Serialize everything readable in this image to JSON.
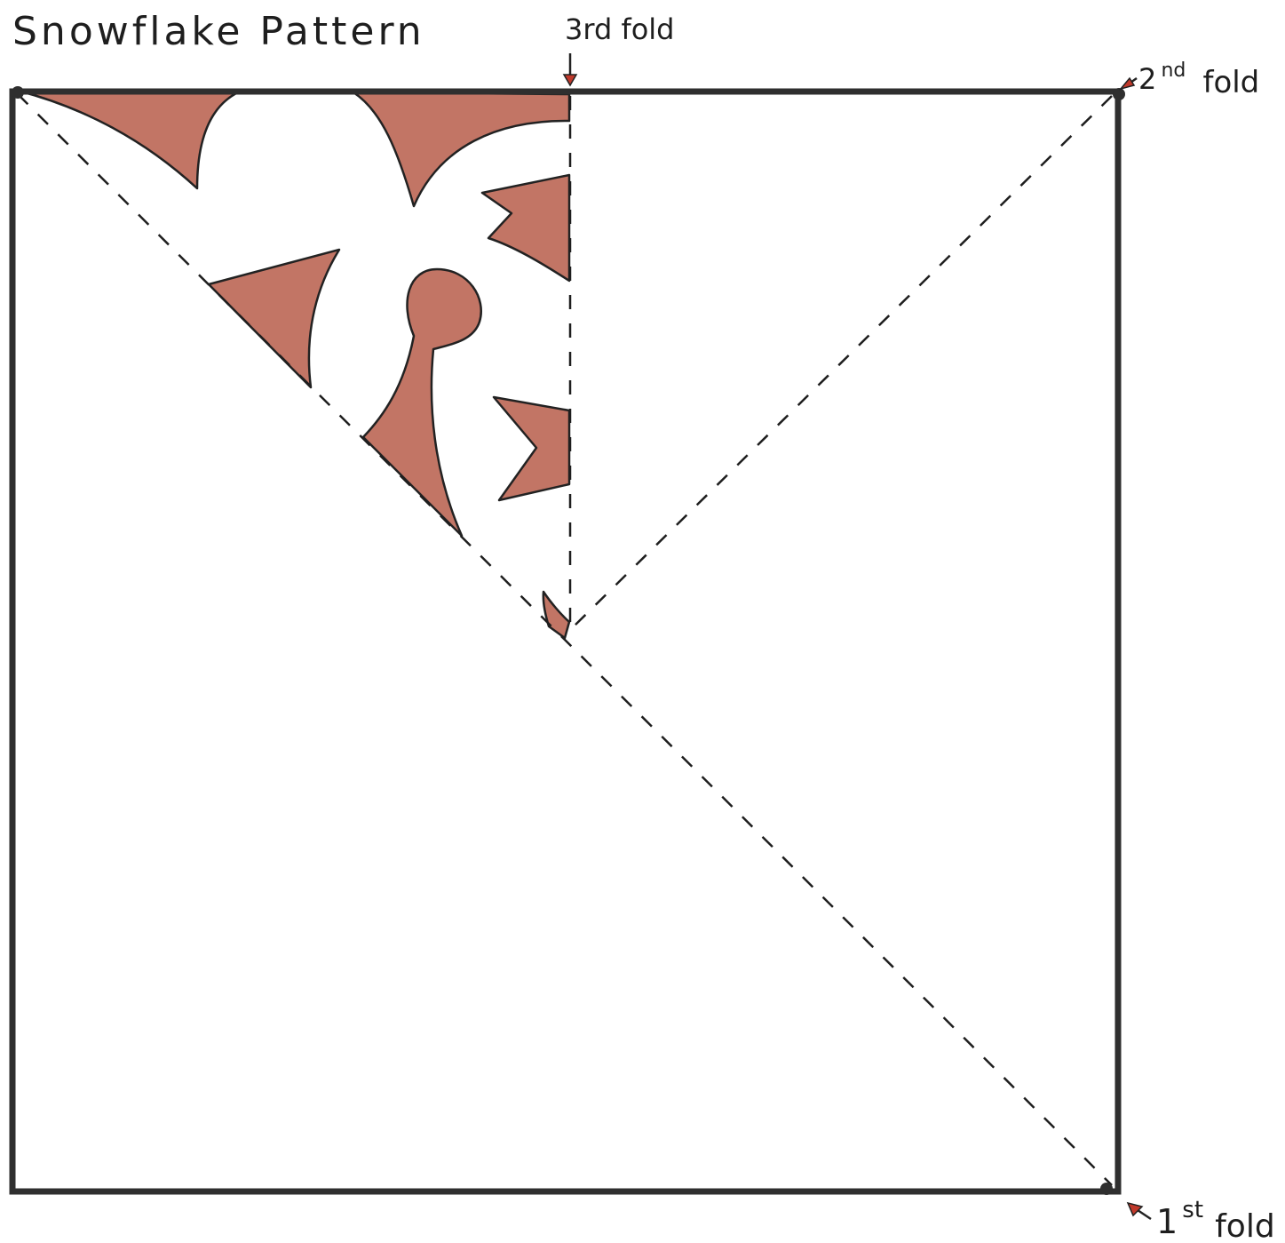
{
  "title": "Snowflake Pattern",
  "labels": {
    "third_fold": "3rd fold",
    "second_fold": {
      "number": "2",
      "suffix": "nd",
      "word": "fold"
    },
    "first_fold": {
      "number": "1",
      "suffix": "st",
      "word": "fold"
    }
  },
  "colors": {
    "cutout_fill": "#c27565",
    "ink": "#2f2f2f",
    "arrow_accent": "#c0392b",
    "paper": "#ffffff"
  }
}
